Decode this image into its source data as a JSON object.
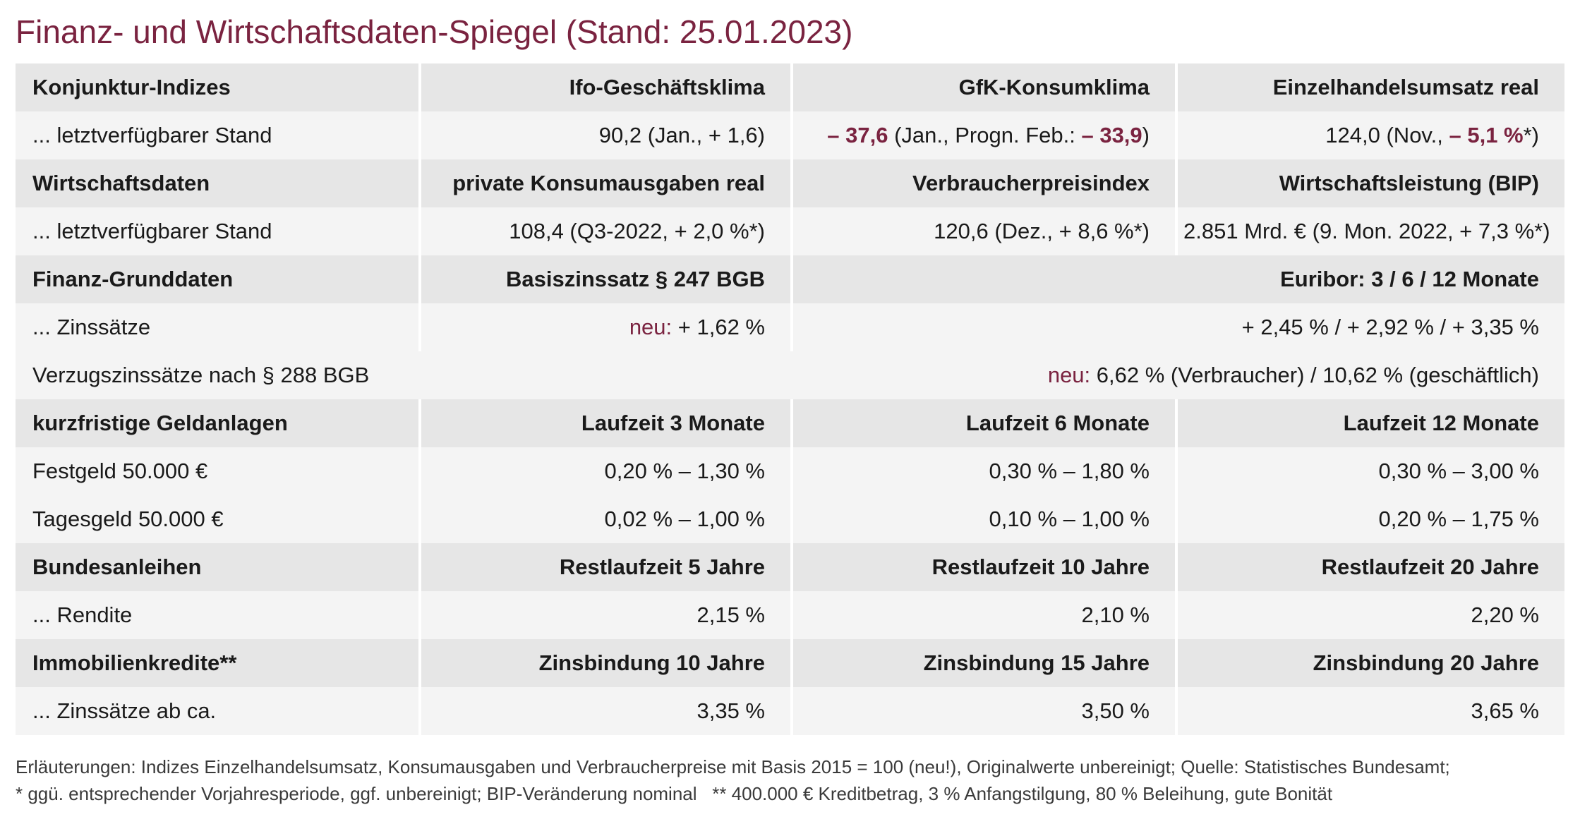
{
  "title": "Finanz- und Wirtschaftsdaten-Spiegel (Stand: 25.01.2023)",
  "konjunktur": {
    "header": [
      "Konjunktur-Indizes",
      "Ifo-Geschäftsklima",
      "GfK-Konsumklima",
      "Einzelhandelsumsatz real"
    ],
    "row_label": "... letztverfügbarer Stand",
    "ifo": "90,2 (Jan., + 1,6)",
    "gfk_value": "– 37,6",
    "gfk_mid": " (Jan., Progn. Feb.: ",
    "gfk_progn": "– 33,9",
    "gfk_end": ")",
    "einzel_pre": "124,0 (Nov., ",
    "einzel_change": "– 5,1 %",
    "einzel_end": "*)"
  },
  "wirtschaft": {
    "header": [
      "Wirtschaftsdaten",
      "private Konsumausgaben real",
      "Verbraucherpreisindex",
      "Wirtschaftsleistung (BIP)"
    ],
    "row": [
      "... letztverfügbarer Stand",
      "108,4 (Q3-2022, + 2,0 %*)",
      "120,6 (Dez., + 8,6 %*)",
      "2.851 Mrd. € (9. Mon. 2022, + 7,3 %*)"
    ]
  },
  "finanz": {
    "header": [
      "Finanz-Grunddaten",
      "Basiszinssatz § 247 BGB",
      "Euribor: 3 / 6 / 12 Monate"
    ],
    "row_label": "... Zinssätze",
    "basis_neu": "neu:",
    "basis_value": " + 1,62 %",
    "euribor": "+ 2,45 % / + 2,92 % / + 3,35 %",
    "verzug_label": "Verzugszinssätze nach § 288 BGB",
    "verzug_neu": "neu:",
    "verzug_value": " 6,62 % (Verbraucher) / 10,62 % (geschäftlich)"
  },
  "geldanlagen": {
    "header": [
      "kurzfristige Geldanlagen",
      "Laufzeit 3 Monate",
      "Laufzeit 6 Monate",
      "Laufzeit 12 Monate"
    ],
    "rows": [
      [
        "Festgeld 50.000 €",
        "0,20 % – 1,30 %",
        "0,30 % – 1,80 %",
        "0,30 % – 3,00 %"
      ],
      [
        "Tagesgeld 50.000 €",
        "0,02 % – 1,00 %",
        "0,10 % – 1,00 %",
        "0,20 % – 1,75 %"
      ]
    ]
  },
  "anleihen": {
    "header": [
      "Bundesanleihen",
      "Restlaufzeit 5 Jahre",
      "Restlaufzeit 10 Jahre",
      "Restlaufzeit 20 Jahre"
    ],
    "row": [
      "... Rendite",
      "2,15 %",
      "2,10 %",
      "2,20 %"
    ]
  },
  "kredite": {
    "header": [
      "Immobilienkredite**",
      "Zinsbindung 10 Jahre",
      "Zinsbindung 15 Jahre",
      "Zinsbindung 20 Jahre"
    ],
    "row": [
      "... Zinssätze ab ca.",
      "3,35 %",
      "3,50 %",
      "3,65 %"
    ]
  },
  "footnotes": [
    "Erläuterungen: Indizes Einzelhandelsumsatz, Konsumausgaben und Verbraucherpreise mit Basis 2015 = 100 (neu!), Originalwerte unbereinigt; Quelle: Statistisches Bundesamt;",
    "* ggü. entsprechender Vorjahresperiode, ggf. unbereinigt; BIP-Veränderung nominal   ** 400.000 € Kreditbetrag, 3 % Anfangstilgung, 80 % Beleihung, gute Bonität"
  ],
  "colors": {
    "accent": "#7a2340",
    "header_bg": "#e6e6e6",
    "row_bg": "#f4f4f4"
  }
}
